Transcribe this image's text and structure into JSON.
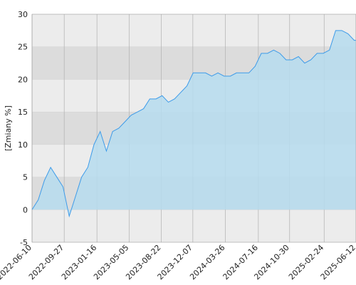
{
  "chart_data": {
    "type": "area",
    "y_label": "[Zmiany %]",
    "x": [
      "2022-06-10",
      "2022-07-01",
      "2022-07-22",
      "2022-08-12",
      "2022-09-02",
      "2022-09-23",
      "2022-10-14",
      "2022-11-04",
      "2022-11-25",
      "2022-12-16",
      "2023-01-06",
      "2023-01-27",
      "2023-02-17",
      "2023-03-10",
      "2023-03-31",
      "2023-04-21",
      "2023-05-12",
      "2023-06-02",
      "2023-06-23",
      "2023-07-14",
      "2023-08-04",
      "2023-08-25",
      "2023-09-15",
      "2023-10-06",
      "2023-10-27",
      "2023-11-17",
      "2023-12-08",
      "2023-12-29",
      "2024-01-19",
      "2024-02-09",
      "2024-03-01",
      "2024-03-22",
      "2024-04-12",
      "2024-05-03",
      "2024-05-24",
      "2024-06-14",
      "2024-07-05",
      "2024-07-26",
      "2024-08-16",
      "2024-09-06",
      "2024-09-27",
      "2024-10-18",
      "2024-11-08",
      "2024-11-29",
      "2024-12-20",
      "2025-01-10",
      "2025-01-31",
      "2025-02-21",
      "2025-03-14",
      "2025-04-04",
      "2025-04-25",
      "2025-05-16",
      "2025-06-06",
      "2025-06-12"
    ],
    "series": [
      {
        "color": "#3d9be9",
        "fill": "#b6dcee",
        "values": [
          0,
          1.5,
          4.5,
          6.5,
          5,
          3.5,
          -1,
          2,
          5,
          6.5,
          10,
          12,
          9,
          12,
          12.5,
          13.5,
          14.5,
          15,
          15.5,
          17,
          17,
          17.5,
          16.5,
          17,
          18,
          19,
          21,
          21,
          21,
          20.5,
          21,
          20.5,
          20.5,
          21,
          21,
          21,
          22,
          24,
          24,
          24.5,
          24,
          23,
          23,
          23.5,
          22.5,
          23,
          24,
          24,
          24.5,
          27.5,
          27.5,
          27,
          26,
          26
        ]
      }
    ],
    "xlim": [
      "2022-06-10",
      "2025-06-12"
    ],
    "xticks": [
      "2022-06-10",
      "2022-09-27",
      "2023-01-16",
      "2023-05-05",
      "2023-08-22",
      "2023-12-07",
      "2024-03-26",
      "2024-07-16",
      "2024-10-30",
      "2025-02-24",
      "2025-06-12"
    ],
    "ylim": [
      -5,
      30
    ],
    "yticks": [
      -5,
      0,
      5,
      10,
      15,
      20,
      25,
      30
    ],
    "grid": true,
    "band_colors": [
      "#ececec",
      "#dcdcdc"
    ]
  }
}
